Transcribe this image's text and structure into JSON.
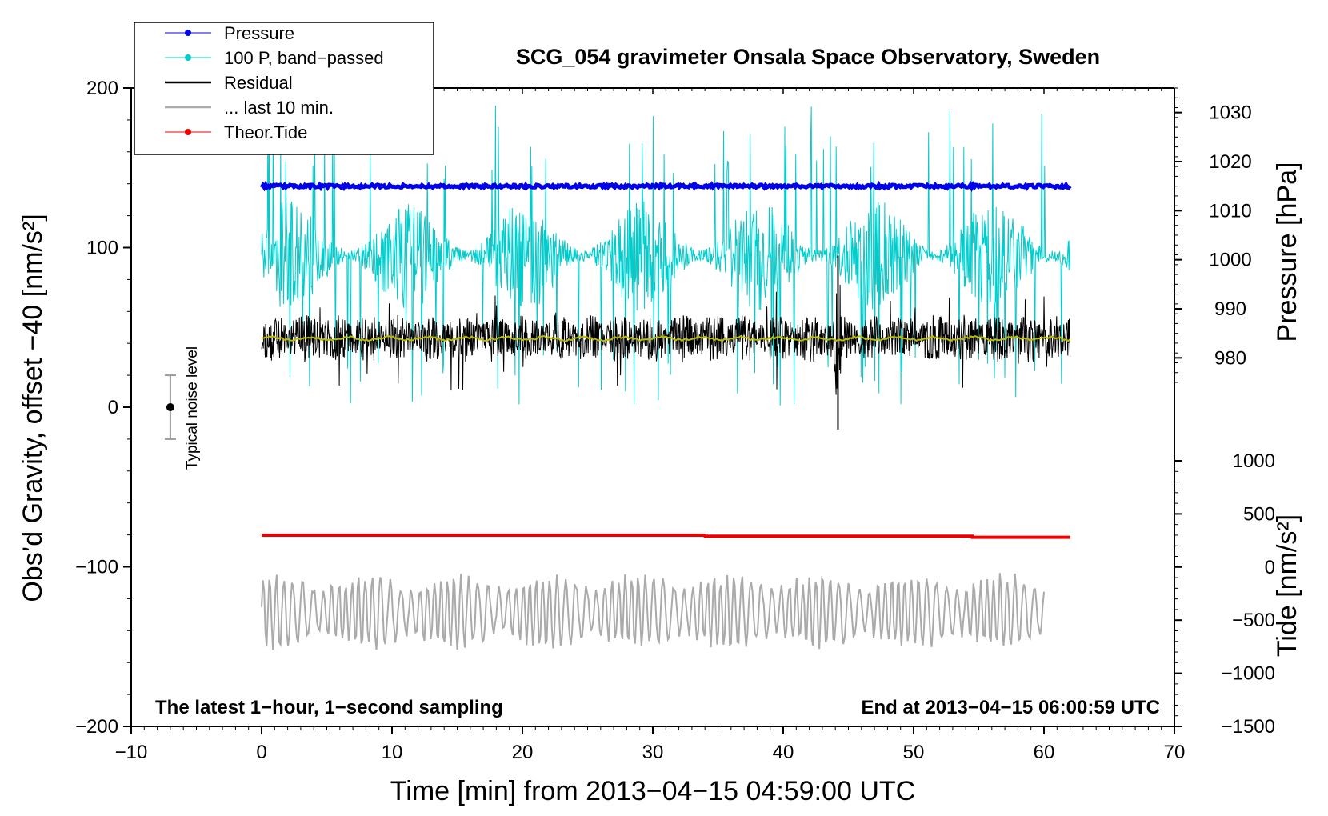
{
  "chart_data": {
    "type": "line",
    "title": "SCG_054 gravimeter Onsala Space Observatory, Sweden",
    "xlabel": "Time [min] from 2013−04−15 04:59:00 UTC",
    "ylabel_left": "Obs’d Gravity, offset −40 [nm/s²]",
    "ylabel_right_pressure": "Pressure [hPa]",
    "ylabel_right_tide": "Tide [nm/s²]",
    "xlim": [
      -10,
      70
    ],
    "ylim": [
      -200,
      200
    ],
    "pressure_lim": [
      975,
      1035
    ],
    "tide_lim": [
      -1500,
      1000
    ],
    "x_ticks": [
      -10,
      0,
      10,
      20,
      30,
      40,
      50,
      60,
      70
    ],
    "x_tick_labels": [
      "−10",
      "0",
      "10",
      "20",
      "30",
      "40",
      "50",
      "60",
      "70"
    ],
    "y_ticks": [
      -200,
      -100,
      0,
      100,
      200
    ],
    "y_tick_labels": [
      "−200",
      "−100",
      "0",
      "100",
      "200"
    ],
    "pressure_ticks": [
      980,
      990,
      1000,
      1010,
      1020,
      1030
    ],
    "pressure_tick_labels": [
      "980",
      "990",
      "1000",
      "1010",
      "1020",
      "1030"
    ],
    "tide_ticks": [
      -1500,
      -1000,
      -500,
      0,
      500,
      1000
    ],
    "tide_tick_labels": [
      "−1500",
      "−1000",
      "−500",
      "0",
      "500",
      "1000"
    ],
    "legend": {
      "position": "top-left",
      "entries": [
        {
          "label": "Pressure",
          "color": "#0000ee",
          "marker": true
        },
        {
          "label": "100 P, band−passed",
          "color": "#00cccc",
          "marker": true
        },
        {
          "label": "Residual",
          "color": "#000000",
          "marker": false
        },
        {
          "label": "... last 10 min.",
          "color": "#aaaaaa",
          "marker": false
        },
        {
          "label": "Theor.Tide",
          "color": "#ee0000",
          "marker": true
        }
      ]
    },
    "annotations": {
      "left_note": "The latest 1−hour, 1−second sampling",
      "right_note": "End at 2013−04−15 06:00:59 UTC",
      "noise_label": "Typical noise level"
    },
    "series": [
      {
        "name": "Pressure",
        "axis": "pressure",
        "color": "#0000ee",
        "x_range": [
          0,
          62
        ],
        "level": 1015,
        "spread": 0.6
      },
      {
        "name": "100 P, band−passed",
        "axis": "left",
        "color": "#00cccc",
        "x_range": [
          0,
          62
        ],
        "center": 95,
        "amplitude": 35,
        "spike_max": 180,
        "spike_min": 2
      },
      {
        "name": "Residual",
        "axis": "left",
        "color": "#000000",
        "x_range": [
          0,
          62
        ],
        "center": 43,
        "amplitude": 15,
        "events": [
          {
            "x": 44.2,
            "max": 95,
            "min": -14
          }
        ]
      },
      {
        "name": "... last 10 min.",
        "axis": "left",
        "color": "#aaaaaa",
        "x_range": [
          0,
          60
        ],
        "center": -128,
        "amplitude": 22,
        "max": -92,
        "min": -158
      },
      {
        "name": "Smoothed residual",
        "axis": "left",
        "color": "#bbbb00",
        "x_range": [
          0,
          62
        ],
        "center": 43,
        "amplitude": 1.5
      },
      {
        "name": "Theor.Tide",
        "axis": "tide",
        "color": "#ee0000",
        "x": [
          0,
          34,
          34.01,
          54.5,
          54.51,
          62
        ],
        "values": [
          300,
          300,
          290,
          290,
          280,
          280
        ]
      }
    ],
    "noise_bar": {
      "x": -7,
      "center": 0,
      "half_range": 20
    }
  }
}
